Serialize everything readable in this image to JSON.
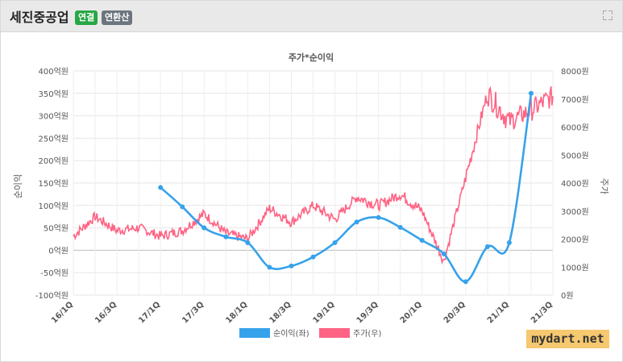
{
  "header": {
    "title": "세진중공업",
    "badge_consolidated": "연결",
    "badge_annualized": "연환산",
    "expand_icon": "expand-icon"
  },
  "watermark": "mydart.net",
  "chart_data": {
    "type": "line",
    "title": "주가*순이익",
    "ylabel_left": "순이익",
    "ylabel_right": "주가",
    "left_axis": {
      "min": -100,
      "max": 400,
      "ticks": [
        "400억원",
        "350억원",
        "300억원",
        "250억원",
        "200억원",
        "150억원",
        "100억원",
        "50억원",
        "0억원",
        "-50억원",
        "-100억원"
      ]
    },
    "right_axis": {
      "min": 0,
      "max": 8000,
      "ticks": [
        "8000원",
        "7000원",
        "6000원",
        "5000원",
        "4000원",
        "3000원",
        "2000원",
        "1000원",
        "0원"
      ]
    },
    "x_ticks": [
      "16/1Q",
      "16/3Q",
      "17/1Q",
      "17/3Q",
      "18/1Q",
      "18/3Q",
      "19/1Q",
      "19/3Q",
      "20/1Q",
      "20/3Q",
      "21/1Q",
      "21/3Q"
    ],
    "series": [
      {
        "name": "순이익(좌)",
        "color": "#36a2eb",
        "axis": "left",
        "points": [
          {
            "x": "17/1Q",
            "y": 140
          },
          {
            "x": "17/2Q",
            "y": 97
          },
          {
            "x": "17/3Q",
            "y": 50
          },
          {
            "x": "17/4Q",
            "y": 30
          },
          {
            "x": "18/1Q",
            "y": 17
          },
          {
            "x": "18/2Q",
            "y": -38
          },
          {
            "x": "18/3Q",
            "y": -35
          },
          {
            "x": "18/4Q",
            "y": -15
          },
          {
            "x": "19/1Q",
            "y": 17
          },
          {
            "x": "19/2Q",
            "y": 63
          },
          {
            "x": "19/3Q",
            "y": 73
          },
          {
            "x": "19/4Q",
            "y": 51
          },
          {
            "x": "20/1Q",
            "y": 22
          },
          {
            "x": "20/2Q",
            "y": -8
          },
          {
            "x": "20/3Q",
            "y": -70
          },
          {
            "x": "20/4Q",
            "y": 8
          },
          {
            "x": "21/1Q",
            "y": 17
          },
          {
            "x": "21/2Q",
            "y": 350
          }
        ]
      },
      {
        "name": "주가(우)",
        "color": "#ff6384",
        "axis": "right",
        "points": [
          {
            "x": "16/1Q",
            "y": 2100
          },
          {
            "x": "16/2Q",
            "y": 2800
          },
          {
            "x": "16/3Q",
            "y": 2300
          },
          {
            "x": "16/4Q",
            "y": 2400
          },
          {
            "x": "17/1Q",
            "y": 2100
          },
          {
            "x": "17/2Q",
            "y": 2300
          },
          {
            "x": "17/3Q",
            "y": 2900
          },
          {
            "x": "17/4Q",
            "y": 2200
          },
          {
            "x": "18/1Q",
            "y": 2000
          },
          {
            "x": "18/2Q",
            "y": 3100
          },
          {
            "x": "18/3Q",
            "y": 2600
          },
          {
            "x": "18/4Q",
            "y": 3200
          },
          {
            "x": "19/1Q",
            "y": 2700
          },
          {
            "x": "19/2Q",
            "y": 3500
          },
          {
            "x": "19/3Q",
            "y": 3200
          },
          {
            "x": "19/4Q",
            "y": 3600
          },
          {
            "x": "20/1Q",
            "y": 3000
          },
          {
            "x": "20/2Q",
            "y": 1200
          },
          {
            "x": "20/3Q",
            "y": 4200
          },
          {
            "x": "20/4Q",
            "y": 7200
          },
          {
            "x": "21/1Q",
            "y": 6200
          },
          {
            "x": "21/2Q",
            "y": 6600
          },
          {
            "x": "21/3Q",
            "y": 7100
          }
        ]
      }
    ],
    "grid": true,
    "legend": "bottom"
  }
}
